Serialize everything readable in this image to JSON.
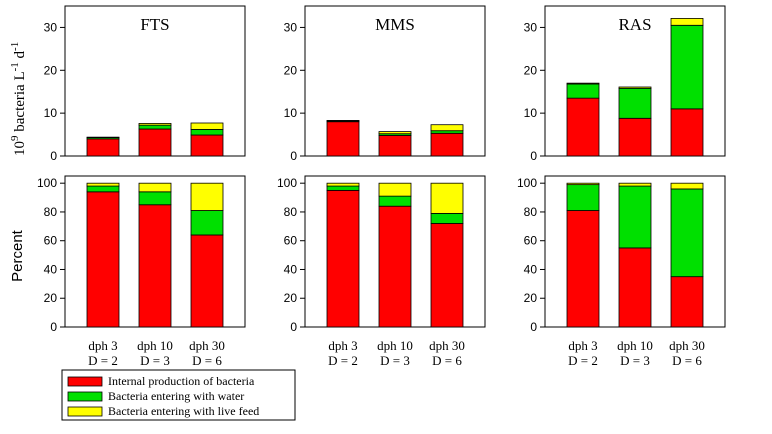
{
  "colors": {
    "internal": "#ff0000",
    "water": "#00e000",
    "feed": "#ffff00",
    "axis": "#000000"
  },
  "y_labels": {
    "top": "10^9 bacteria L^-1 d^-1",
    "top_parts": {
      "base": "10",
      "base_exp": "9",
      "mid": " bacteria L",
      "l_exp": "-1",
      "d": " d",
      "d_exp": "-1"
    },
    "bottom": "Percent"
  },
  "legend": {
    "items": [
      {
        "key": "internal",
        "label": "Internal production of bacteria"
      },
      {
        "key": "water",
        "label": "Bacteria entering with water"
      },
      {
        "key": "feed",
        "label": "Bacteria entering with live feed"
      }
    ]
  },
  "chart_data": [
    {
      "type": "bar",
      "stacked": true,
      "panel": "FTS-absolute",
      "title": "FTS",
      "categories": [
        "dph 3 D = 2",
        "dph 10 D = 3",
        "dph 30 D = 6"
      ],
      "series": [
        {
          "name": "Internal production of bacteria",
          "values": [
            4.0,
            6.3,
            4.9
          ]
        },
        {
          "name": "Bacteria entering with water",
          "values": [
            0.3,
            0.9,
            1.3
          ]
        },
        {
          "name": "Bacteria entering with live feed",
          "values": [
            0.1,
            0.4,
            1.5
          ]
        }
      ],
      "ylim": [
        0,
        35
      ],
      "yticks": [
        0,
        10,
        20,
        30
      ]
    },
    {
      "type": "bar",
      "stacked": true,
      "panel": "MMS-absolute",
      "title": "MMS",
      "categories": [
        "dph 3 D = 2",
        "dph 10 D = 3",
        "dph 30 D = 6"
      ],
      "series": [
        {
          "name": "Internal production of bacteria",
          "values": [
            8.0,
            4.8,
            5.3
          ]
        },
        {
          "name": "Bacteria entering with water",
          "values": [
            0.2,
            0.4,
            0.6
          ]
        },
        {
          "name": "Bacteria entering with live feed",
          "values": [
            0.1,
            0.5,
            1.4
          ]
        }
      ],
      "ylim": [
        0,
        35
      ],
      "yticks": [
        0,
        10,
        20,
        30
      ]
    },
    {
      "type": "bar",
      "stacked": true,
      "panel": "RAS-absolute",
      "title": "RAS",
      "categories": [
        "dph 3 D = 2",
        "dph 10 D = 3",
        "dph 30 D = 6"
      ],
      "series": [
        {
          "name": "Internal production of bacteria",
          "values": [
            13.5,
            8.8,
            11.0
          ]
        },
        {
          "name": "Bacteria entering with water",
          "values": [
            3.3,
            7.0,
            19.5
          ]
        },
        {
          "name": "Bacteria entering with live feed",
          "values": [
            0.2,
            0.3,
            1.6
          ]
        }
      ],
      "ylim": [
        0,
        35
      ],
      "yticks": [
        0,
        10,
        20,
        30
      ]
    },
    {
      "type": "bar",
      "stacked": true,
      "panel": "FTS-percent",
      "categories": [
        "dph 3 D = 2",
        "dph 10 D = 3",
        "dph 30 D = 6"
      ],
      "series": [
        {
          "name": "Internal production of bacteria",
          "values": [
            94,
            85,
            64
          ]
        },
        {
          "name": "Bacteria entering with water",
          "values": [
            4,
            9,
            17
          ]
        },
        {
          "name": "Bacteria entering with live feed",
          "values": [
            2,
            6,
            19
          ]
        }
      ],
      "ylim": [
        0,
        105
      ],
      "yticks": [
        0,
        20,
        40,
        60,
        80,
        100
      ]
    },
    {
      "type": "bar",
      "stacked": true,
      "panel": "MMS-percent",
      "categories": [
        "dph 3 D = 2",
        "dph 10 D = 3",
        "dph 30 D = 6"
      ],
      "series": [
        {
          "name": "Internal production of bacteria",
          "values": [
            95,
            84,
            72
          ]
        },
        {
          "name": "Bacteria entering with water",
          "values": [
            3,
            7,
            7
          ]
        },
        {
          "name": "Bacteria entering with live feed",
          "values": [
            2,
            9,
            21
          ]
        }
      ],
      "ylim": [
        0,
        105
      ],
      "yticks": [
        0,
        20,
        40,
        60,
        80,
        100
      ]
    },
    {
      "type": "bar",
      "stacked": true,
      "panel": "RAS-percent",
      "categories": [
        "dph 3 D = 2",
        "dph 10 D = 3",
        "dph 30 D = 6"
      ],
      "series": [
        {
          "name": "Internal production of bacteria",
          "values": [
            81,
            55,
            35
          ]
        },
        {
          "name": "Bacteria entering with water",
          "values": [
            18,
            43,
            61
          ]
        },
        {
          "name": "Bacteria entering with live feed",
          "values": [
            1,
            2,
            4
          ]
        }
      ],
      "ylim": [
        0,
        105
      ],
      "yticks": [
        0,
        20,
        40,
        60,
        80,
        100
      ]
    }
  ],
  "category_lines": [
    {
      "line1": "dph 3",
      "line2": "D = 2"
    },
    {
      "line1": "dph 10",
      "line2": "D = 3"
    },
    {
      "line1": "dph 30",
      "line2": "D = 6"
    }
  ]
}
